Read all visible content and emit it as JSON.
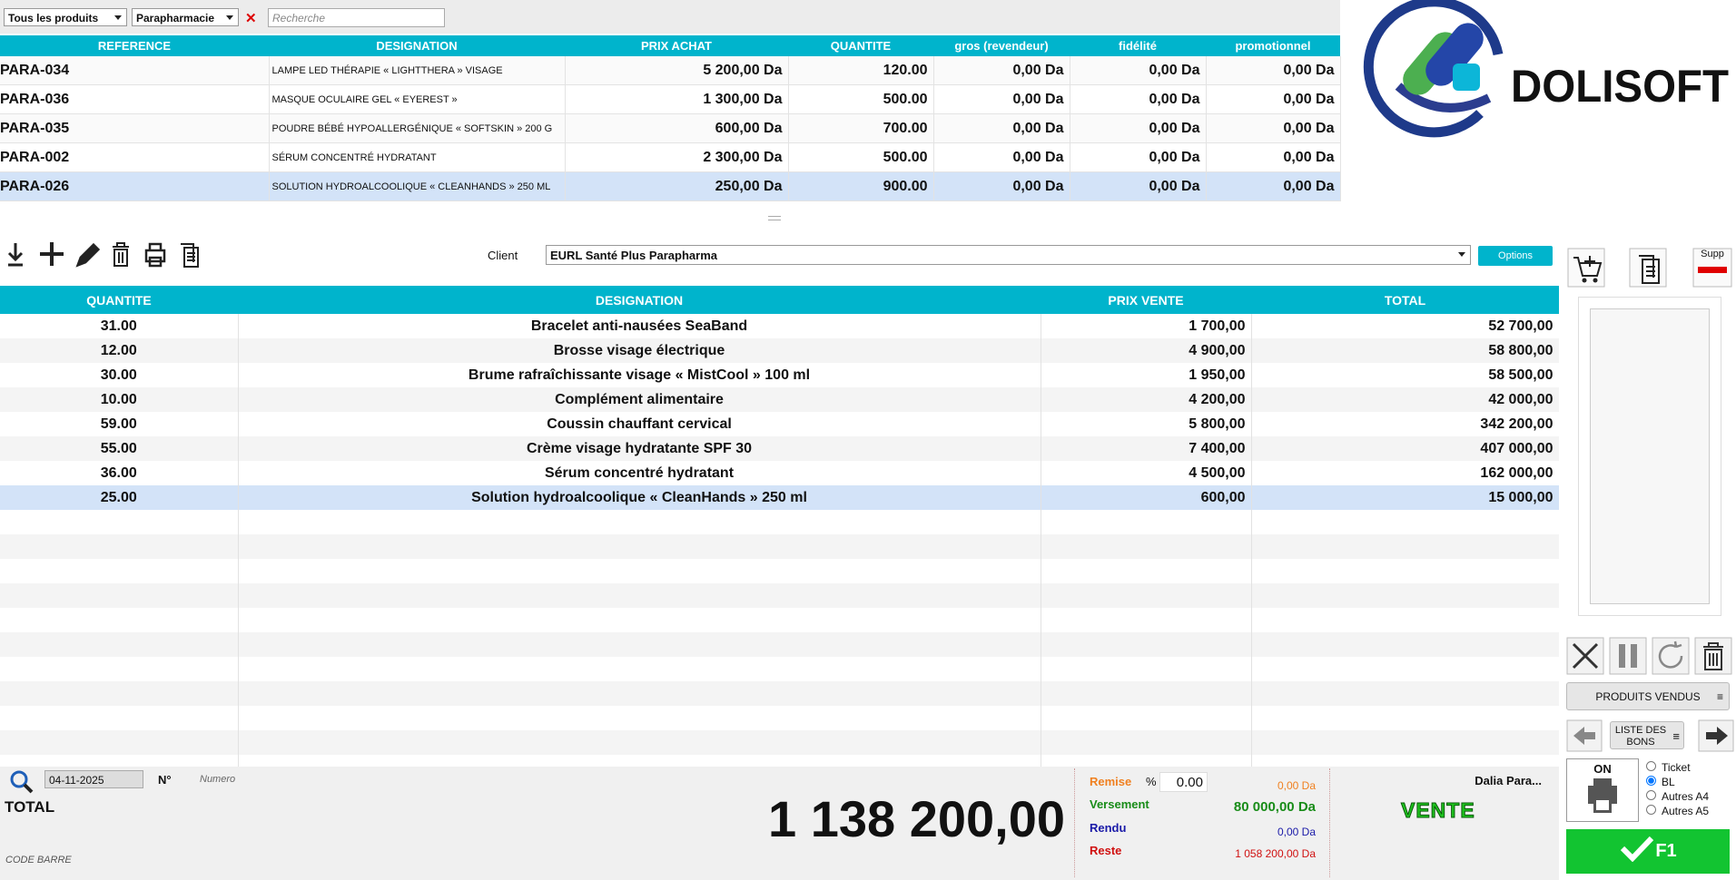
{
  "filters": {
    "category": "Tous les produits",
    "family": "Parapharmacie",
    "search_placeholder": "Recherche"
  },
  "products": {
    "columns": [
      "REFERENCE",
      "DESIGNATION",
      "PRIX ACHAT",
      "QUANTITE",
      "gros (revendeur)",
      "fidélité",
      "promotionnel"
    ],
    "rows": [
      [
        "PARA-034",
        "LAMPE LED THÉRAPIE « LIGHTTHERA » VISAGE",
        "5 200,00 Da",
        "120.00",
        "0,00 Da",
        "0,00 Da",
        "0,00 Da"
      ],
      [
        "PARA-036",
        "MASQUE OCULAIRE GEL « EYEREST »",
        "1 300,00 Da",
        "500.00",
        "0,00 Da",
        "0,00 Da",
        "0,00 Da"
      ],
      [
        "PARA-035",
        "POUDRE BÉBÉ HYPOALLERGÉNIQUE « SOFTSKIN » 200 G",
        "600,00 Da",
        "700.00",
        "0,00 Da",
        "0,00 Da",
        "0,00 Da"
      ],
      [
        "PARA-002",
        "SÉRUM CONCENTRÉ HYDRATANT",
        "2 300,00 Da",
        "500.00",
        "0,00 Da",
        "0,00 Da",
        "0,00 Da"
      ],
      [
        "PARA-026",
        "SOLUTION HYDROALCOOLIQUE « CLEANHANDS » 250 ML",
        "250,00 Da",
        "900.00",
        "0,00 Da",
        "0,00 Da",
        "0,00 Da"
      ]
    ]
  },
  "logo": "DOLISOFT",
  "toolbar": {
    "client_label": "Client",
    "client": "EURL  Santé Plus Parapharma",
    "options": "Options",
    "supp": "Supp"
  },
  "sale": {
    "columns": [
      "QUANTITE",
      "DESIGNATION",
      "PRIX VENTE",
      "TOTAL"
    ],
    "rows": [
      [
        "31.00",
        "Bracelet anti-nausées SeaBand",
        "1 700,00",
        "52 700,00"
      ],
      [
        "12.00",
        "Brosse visage électrique",
        "4 900,00",
        "58 800,00"
      ],
      [
        "30.00",
        "Brume rafraîchissante visage « MistCool » 100 ml",
        "1 950,00",
        "58 500,00"
      ],
      [
        "10.00",
        "Complément alimentaire",
        "4 200,00",
        "42 000,00"
      ],
      [
        "59.00",
        "Coussin chauffant cervical",
        "5 800,00",
        "342 200,00"
      ],
      [
        "55.00",
        "Crème visage hydratante SPF 30",
        "7 400,00",
        "407 000,00"
      ],
      [
        "36.00",
        "Sérum concentré hydratant",
        "4 500,00",
        "162 000,00"
      ],
      [
        "25.00",
        "Solution hydroalcoolique « CleanHands » 250 ml",
        "600,00",
        "15 000,00"
      ]
    ]
  },
  "side": {
    "sold_products": "PRODUITS VENDUS",
    "bons_list": "LISTE DES BONS",
    "printer_state": "ON",
    "print_options": [
      "Ticket",
      "BL",
      "Autres A4",
      "Autres A5"
    ],
    "submit": "F1"
  },
  "footer": {
    "date": "04-11-2025",
    "number_label": "N°",
    "number_placeholder": "Numero",
    "total_label": "TOTAL",
    "barcode_label": "CODE BARRE",
    "total": "1 138 200,00"
  },
  "payment": {
    "discount_label": "Remise",
    "percent": "%",
    "discount_rate": "0.00",
    "discount_amount": "0,00 Da",
    "paid_label": "Versement",
    "paid": "80 000,00 Da",
    "change_label": "Rendu",
    "change": "0,00 Da",
    "remaining_label": "Reste",
    "remaining": "1 058 200,00 Da"
  },
  "user": "Dalia Para...",
  "mode": "VENTE"
}
